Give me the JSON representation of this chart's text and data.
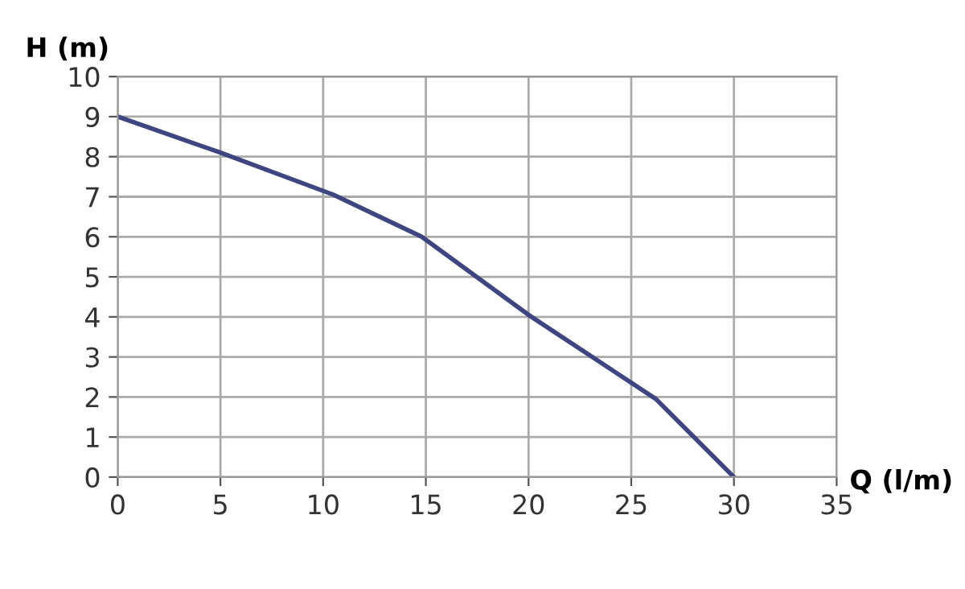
{
  "chart_data": {
    "type": "line",
    "xlabel": "Q (l/m)",
    "ylabel": "H (m)",
    "x": [
      0,
      5,
      10.5,
      14.8,
      20,
      26.2,
      30
    ],
    "series": [
      {
        "color": "#3f4580",
        "values": [
          9,
          8.1,
          7.05,
          6,
          4.05,
          1.95,
          0
        ]
      }
    ],
    "xlim": [
      0,
      35
    ],
    "xticks": [
      0,
      5,
      10,
      15,
      20,
      25,
      30,
      35
    ],
    "ylim": [
      0,
      10
    ],
    "yticks": [
      0,
      1,
      2,
      3,
      4,
      5,
      6,
      7,
      8,
      9,
      10
    ],
    "grid": true,
    "marker": "none",
    "line_style": "solid"
  }
}
